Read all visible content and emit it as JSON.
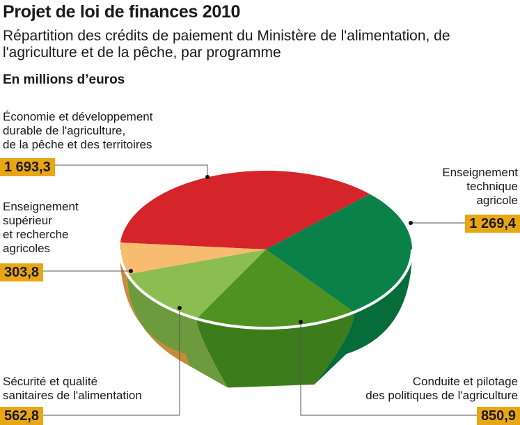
{
  "header": {
    "title": "Projet de loi de finances 2010",
    "subtitle": "Répartition des crédits de paiement du Ministère de l'alimentation, de l'agriculture et de la pêche, par programme",
    "unit": "En millions d’euros"
  },
  "chart_data": {
    "type": "pie",
    "title": "Projet de loi de finances 2010",
    "subtitle": "Répartition des crédits de paiement du Ministère de l'alimentation, de l'agriculture et de la pêche, par programme",
    "unit": "En millions d’euros",
    "categories": [
      "Économie et développement\ndurable de l'agriculture,\nde la pêche et des territoires",
      "Enseignement\ntechnique\nagricole",
      "Conduite et pilotage\ndes politiques de l'agriculture",
      "Sécurité et qualité\nsanitaires de l'alimentation",
      "Enseignement\nsupérieur\net recherche\nagricoles"
    ],
    "values": [
      1693.3,
      1269.4,
      850.9,
      562.8,
      303.8
    ],
    "value_labels": [
      "1 693,3",
      "1 269,4",
      "850,9",
      "562,8",
      "303,8"
    ],
    "colors": [
      "#d6242b",
      "#0a8148",
      "#4e9322",
      "#8cbd50",
      "#f7bc6f"
    ],
    "side_colors": [
      "#8b1a1c",
      "#056c3a",
      "#3d7c1a",
      "#6c9a3c",
      "#c98a3d"
    ],
    "accent_label_bg": "#e8a615"
  }
}
